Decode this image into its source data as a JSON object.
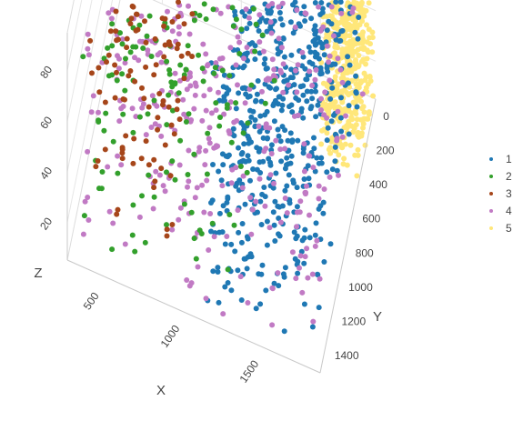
{
  "chart_data": {
    "type": "scatter",
    "subtype": "3d-scatter",
    "title": "",
    "xlabel": "X",
    "ylabel": "Y",
    "zlabel": "Z",
    "x_ticks": [
      "500",
      "1000",
      "1500"
    ],
    "y_ticks": [
      "0",
      "200",
      "400",
      "600",
      "800",
      "1000",
      "1200",
      "1400"
    ],
    "z_ticks": [
      "20",
      "40",
      "60",
      "80"
    ],
    "xlim": [
      250,
      1850
    ],
    "ylim": [
      -100,
      1500
    ],
    "zlim": [
      5,
      95
    ],
    "grid": true,
    "legend_position": "right",
    "series": [
      {
        "name": "1",
        "color": "#1f78b4",
        "x_range": [
          1100,
          1800
        ],
        "y_range": [
          -100,
          1450
        ],
        "z_range": [
          5,
          95
        ]
      },
      {
        "name": "2",
        "color": "#33a02c",
        "x_range": [
          300,
          1300
        ],
        "y_range": [
          -100,
          1450
        ],
        "z_range": [
          5,
          95
        ]
      },
      {
        "name": "3",
        "color": "#a6461a",
        "x_range": [
          300,
          850
        ],
        "y_range": [
          200,
          1300
        ],
        "z_range": [
          5,
          78
        ]
      },
      {
        "name": "4",
        "color": "#c17ac4",
        "x_range": [
          300,
          1800
        ],
        "y_range": [
          -100,
          1450
        ],
        "z_range": [
          5,
          90
        ]
      },
      {
        "name": "5",
        "color": "#ffe77a",
        "x_range": [
          1600,
          1850
        ],
        "y_range": [
          -100,
          400
        ],
        "z_range": [
          5,
          95
        ]
      }
    ]
  }
}
